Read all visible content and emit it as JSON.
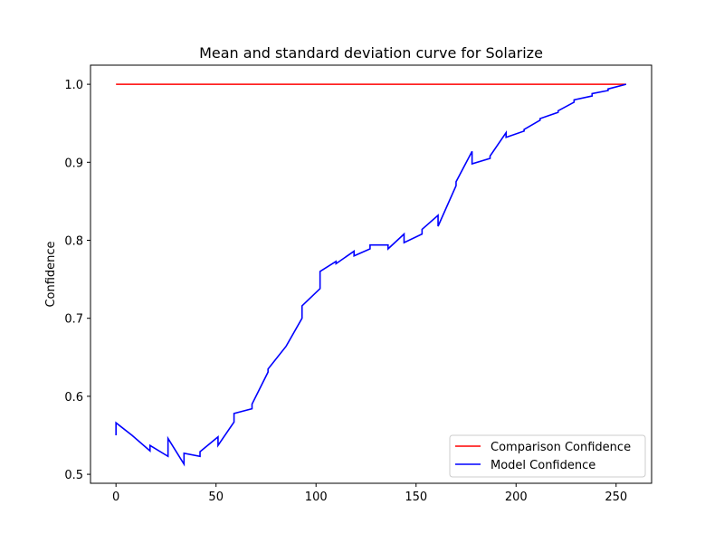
{
  "chart_data": {
    "type": "line",
    "title": "Mean and standard deviation curve for Solarize",
    "xlabel": "",
    "ylabel": "Confidence",
    "xlim": [
      -12.75,
      267.75
    ],
    "ylim": [
      0.4885,
      1.0245
    ],
    "xticks": [
      0,
      50,
      100,
      150,
      200,
      250
    ],
    "yticks": [
      0.5,
      0.6,
      0.7,
      0.8,
      0.9,
      1.0
    ],
    "ytick_labels": [
      "0.5",
      "0.6",
      "0.7",
      "0.8",
      "0.9",
      "1.0"
    ],
    "grid": false,
    "legend_position": "bottom-right",
    "series": [
      {
        "name": "Comparison Confidence",
        "color": "#ff0000",
        "x": [
          0,
          255
        ],
        "y": [
          1.0,
          1.0
        ]
      },
      {
        "name": "Model Confidence",
        "color": "#0000ff",
        "x": [
          0,
          0,
          8,
          17,
          17,
          26,
          26,
          34,
          34,
          42,
          42,
          51,
          51,
          59,
          59,
          68,
          68,
          76,
          76,
          85,
          93,
          93,
          102,
          102,
          110,
          110,
          119,
          119,
          127,
          127,
          136,
          136,
          144,
          144,
          153,
          153,
          161,
          161,
          170,
          170,
          178,
          178,
          187,
          187,
          195,
          195,
          204,
          204,
          212,
          212,
          221,
          221,
          229,
          229,
          238,
          238,
          246,
          246,
          255
        ],
        "y": [
          0.55,
          0.566,
          0.55,
          0.53,
          0.537,
          0.523,
          0.546,
          0.513,
          0.527,
          0.523,
          0.529,
          0.548,
          0.537,
          0.567,
          0.578,
          0.584,
          0.59,
          0.631,
          0.635,
          0.664,
          0.7,
          0.716,
          0.738,
          0.76,
          0.773,
          0.77,
          0.786,
          0.78,
          0.789,
          0.794,
          0.794,
          0.789,
          0.808,
          0.797,
          0.808,
          0.814,
          0.832,
          0.818,
          0.87,
          0.875,
          0.914,
          0.898,
          0.905,
          0.908,
          0.938,
          0.932,
          0.94,
          0.942,
          0.954,
          0.956,
          0.964,
          0.966,
          0.977,
          0.98,
          0.985,
          0.988,
          0.992,
          0.994,
          1.0
        ]
      }
    ]
  }
}
